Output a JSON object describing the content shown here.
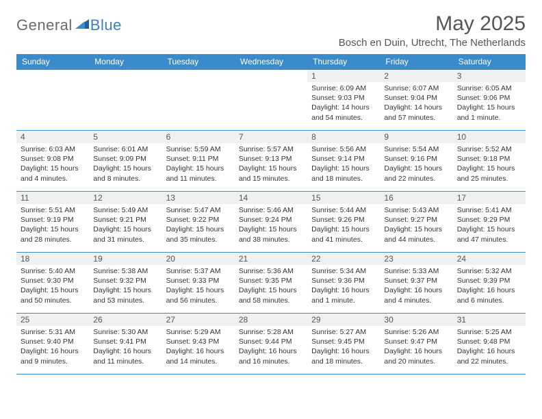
{
  "brand": {
    "part1": "General",
    "part2": "Blue"
  },
  "title": "May 2025",
  "location": "Bosch en Duin, Utrecht, The Netherlands",
  "colors": {
    "header_bg": "#3a8bc9",
    "rule": "#3a8bc9",
    "date_bg": "#eef0f2",
    "text": "#333333",
    "title_text": "#555555"
  },
  "day_names": [
    "Sunday",
    "Monday",
    "Tuesday",
    "Wednesday",
    "Thursday",
    "Friday",
    "Saturday"
  ],
  "layout": {
    "first_weekday_index": 4,
    "days_in_month": 31,
    "weeks": 5
  },
  "days": {
    "1": {
      "sunrise": "6:09 AM",
      "sunset": "9:03 PM",
      "daylight": "14 hours and 54 minutes."
    },
    "2": {
      "sunrise": "6:07 AM",
      "sunset": "9:04 PM",
      "daylight": "14 hours and 57 minutes."
    },
    "3": {
      "sunrise": "6:05 AM",
      "sunset": "9:06 PM",
      "daylight": "15 hours and 1 minute."
    },
    "4": {
      "sunrise": "6:03 AM",
      "sunset": "9:08 PM",
      "daylight": "15 hours and 4 minutes."
    },
    "5": {
      "sunrise": "6:01 AM",
      "sunset": "9:09 PM",
      "daylight": "15 hours and 8 minutes."
    },
    "6": {
      "sunrise": "5:59 AM",
      "sunset": "9:11 PM",
      "daylight": "15 hours and 11 minutes."
    },
    "7": {
      "sunrise": "5:57 AM",
      "sunset": "9:13 PM",
      "daylight": "15 hours and 15 minutes."
    },
    "8": {
      "sunrise": "5:56 AM",
      "sunset": "9:14 PM",
      "daylight": "15 hours and 18 minutes."
    },
    "9": {
      "sunrise": "5:54 AM",
      "sunset": "9:16 PM",
      "daylight": "15 hours and 22 minutes."
    },
    "10": {
      "sunrise": "5:52 AM",
      "sunset": "9:18 PM",
      "daylight": "15 hours and 25 minutes."
    },
    "11": {
      "sunrise": "5:51 AM",
      "sunset": "9:19 PM",
      "daylight": "15 hours and 28 minutes."
    },
    "12": {
      "sunrise": "5:49 AM",
      "sunset": "9:21 PM",
      "daylight": "15 hours and 31 minutes."
    },
    "13": {
      "sunrise": "5:47 AM",
      "sunset": "9:22 PM",
      "daylight": "15 hours and 35 minutes."
    },
    "14": {
      "sunrise": "5:46 AM",
      "sunset": "9:24 PM",
      "daylight": "15 hours and 38 minutes."
    },
    "15": {
      "sunrise": "5:44 AM",
      "sunset": "9:26 PM",
      "daylight": "15 hours and 41 minutes."
    },
    "16": {
      "sunrise": "5:43 AM",
      "sunset": "9:27 PM",
      "daylight": "15 hours and 44 minutes."
    },
    "17": {
      "sunrise": "5:41 AM",
      "sunset": "9:29 PM",
      "daylight": "15 hours and 47 minutes."
    },
    "18": {
      "sunrise": "5:40 AM",
      "sunset": "9:30 PM",
      "daylight": "15 hours and 50 minutes."
    },
    "19": {
      "sunrise": "5:38 AM",
      "sunset": "9:32 PM",
      "daylight": "15 hours and 53 minutes."
    },
    "20": {
      "sunrise": "5:37 AM",
      "sunset": "9:33 PM",
      "daylight": "15 hours and 56 minutes."
    },
    "21": {
      "sunrise": "5:36 AM",
      "sunset": "9:35 PM",
      "daylight": "15 hours and 58 minutes."
    },
    "22": {
      "sunrise": "5:34 AM",
      "sunset": "9:36 PM",
      "daylight": "16 hours and 1 minute."
    },
    "23": {
      "sunrise": "5:33 AM",
      "sunset": "9:37 PM",
      "daylight": "16 hours and 4 minutes."
    },
    "24": {
      "sunrise": "5:32 AM",
      "sunset": "9:39 PM",
      "daylight": "16 hours and 6 minutes."
    },
    "25": {
      "sunrise": "5:31 AM",
      "sunset": "9:40 PM",
      "daylight": "16 hours and 9 minutes."
    },
    "26": {
      "sunrise": "5:30 AM",
      "sunset": "9:41 PM",
      "daylight": "16 hours and 11 minutes."
    },
    "27": {
      "sunrise": "5:29 AM",
      "sunset": "9:43 PM",
      "daylight": "16 hours and 14 minutes."
    },
    "28": {
      "sunrise": "5:28 AM",
      "sunset": "9:44 PM",
      "daylight": "16 hours and 16 minutes."
    },
    "29": {
      "sunrise": "5:27 AM",
      "sunset": "9:45 PM",
      "daylight": "16 hours and 18 minutes."
    },
    "30": {
      "sunrise": "5:26 AM",
      "sunset": "9:47 PM",
      "daylight": "16 hours and 20 minutes."
    },
    "31": {
      "sunrise": "5:25 AM",
      "sunset": "9:48 PM",
      "daylight": "16 hours and 22 minutes."
    }
  },
  "labels": {
    "sunrise": "Sunrise:",
    "sunset": "Sunset:",
    "daylight": "Daylight:"
  }
}
